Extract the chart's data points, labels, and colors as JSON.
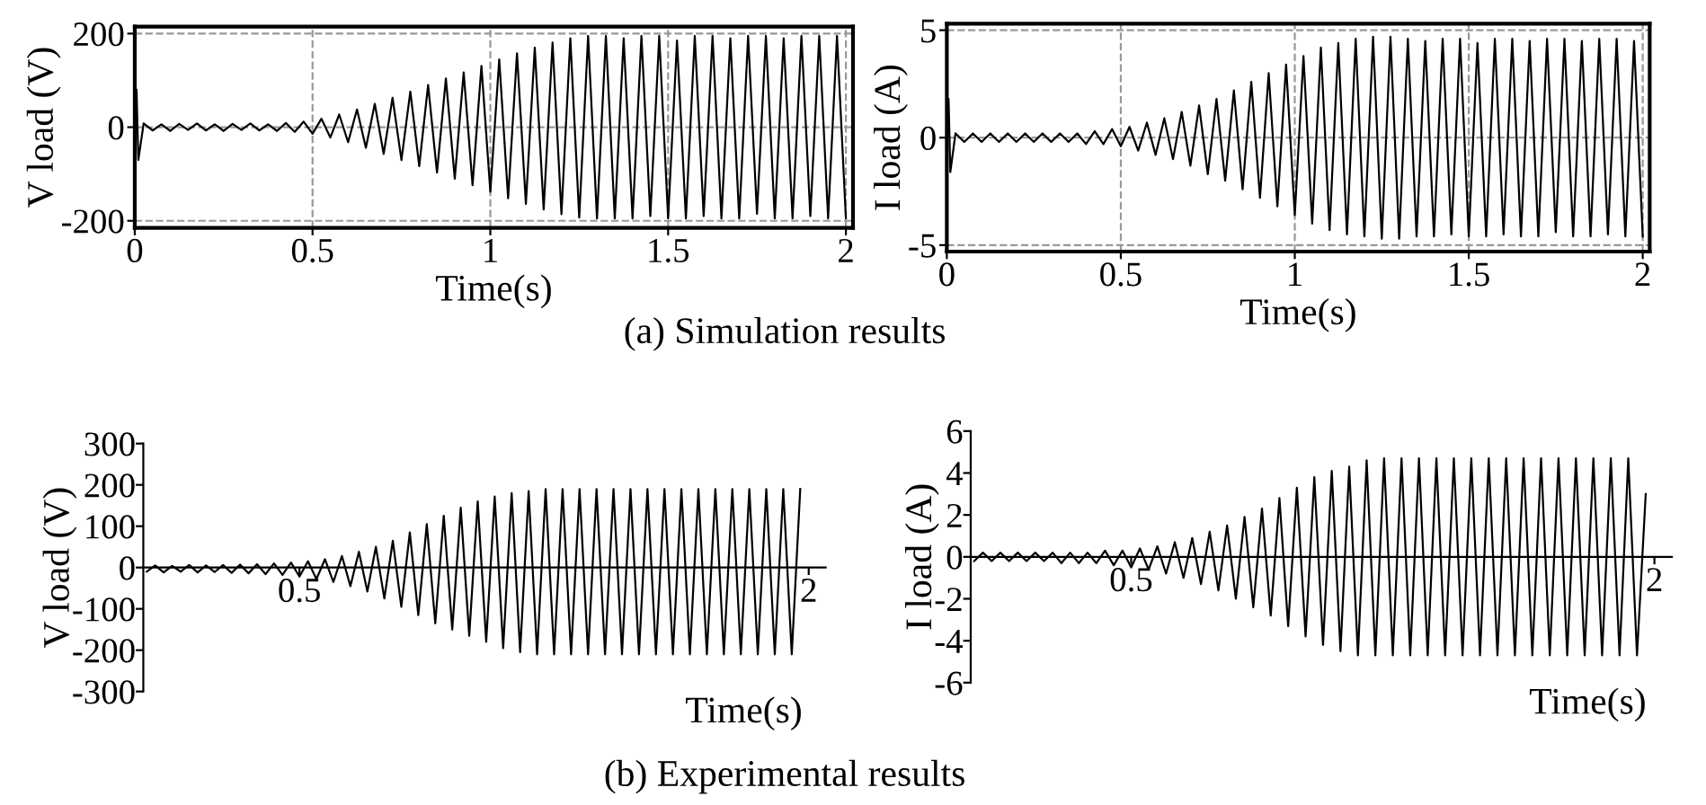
{
  "chart_data": [
    {
      "type": "line",
      "xlabel": "Time(s)",
      "ylabel": "V load (V)",
      "xlim": [
        0,
        2.02
      ],
      "ylim": [
        -215,
        215
      ],
      "xticks": [
        0,
        0.5,
        1,
        1.5,
        2
      ],
      "yticks": [
        -200,
        0,
        200
      ],
      "grid": true,
      "annotations": [
        "(a) Simulation results"
      ],
      "series": [
        {
          "color": "#000000",
          "x": [
            0,
            0.005,
            0.01,
            0.025,
            0.05,
            0.075,
            0.1,
            0.125,
            0.15,
            0.175,
            0.2,
            0.225,
            0.25,
            0.275,
            0.3,
            0.325,
            0.35,
            0.375,
            0.4,
            0.425,
            0.45,
            0.475,
            0.5,
            0.525,
            0.55,
            0.575,
            0.6,
            0.625,
            0.65,
            0.675,
            0.7,
            0.725,
            0.75,
            0.775,
            0.8,
            0.825,
            0.85,
            0.875,
            0.9,
            0.925,
            0.95,
            0.975,
            1.0,
            1.025,
            1.05,
            1.075,
            1.1,
            1.125,
            1.15,
            1.175,
            1.2,
            1.225,
            1.25,
            1.275,
            1.3,
            1.325,
            1.35,
            1.375,
            1.4,
            1.425,
            1.45,
            1.475,
            1.5,
            1.525,
            1.55,
            1.575,
            1.6,
            1.625,
            1.65,
            1.675,
            1.7,
            1.725,
            1.75,
            1.775,
            1.8,
            1.825,
            1.85,
            1.875,
            1.9,
            1.925,
            1.95,
            1.975,
            2.0
          ],
          "values": [
            0,
            80,
            -70,
            8,
            -7,
            6,
            -8,
            7,
            -6,
            8,
            -7,
            6,
            -8,
            7,
            -6,
            8,
            -7,
            6,
            -8,
            9,
            -10,
            12,
            -14,
            18,
            -22,
            27,
            -32,
            38,
            -44,
            50,
            -57,
            63,
            -70,
            76,
            -83,
            90,
            -97,
            104,
            -110,
            117,
            -124,
            131,
            -138,
            145,
            -152,
            158,
            -164,
            170,
            -176,
            181,
            -186,
            190,
            -193,
            195,
            -195,
            195,
            -195,
            190,
            -195,
            195,
            -190,
            195,
            -195,
            185,
            -195,
            195,
            -190,
            195,
            -195,
            190,
            -195,
            195,
            -185,
            195,
            -195,
            190,
            -195,
            195,
            -190,
            195,
            -195,
            195,
            -195
          ]
        }
      ]
    },
    {
      "type": "line",
      "xlabel": "Time(s)",
      "ylabel": "I load (A)",
      "xlim": [
        0,
        2.02
      ],
      "ylim": [
        -5.3,
        5.3
      ],
      "xticks": [
        0,
        0.5,
        1,
        1.5,
        2
      ],
      "yticks": [
        -5,
        0,
        5
      ],
      "grid": true,
      "series": [
        {
          "color": "#000000",
          "x": [
            0,
            0.005,
            0.01,
            0.025,
            0.05,
            0.075,
            0.1,
            0.125,
            0.15,
            0.175,
            0.2,
            0.225,
            0.25,
            0.275,
            0.3,
            0.325,
            0.35,
            0.375,
            0.4,
            0.425,
            0.45,
            0.475,
            0.5,
            0.525,
            0.55,
            0.575,
            0.6,
            0.625,
            0.65,
            0.675,
            0.7,
            0.725,
            0.75,
            0.775,
            0.8,
            0.825,
            0.85,
            0.875,
            0.9,
            0.925,
            0.95,
            0.975,
            1.0,
            1.025,
            1.05,
            1.075,
            1.1,
            1.125,
            1.15,
            1.175,
            1.2,
            1.225,
            1.25,
            1.275,
            1.3,
            1.325,
            1.35,
            1.375,
            1.4,
            1.425,
            1.45,
            1.475,
            1.5,
            1.525,
            1.55,
            1.575,
            1.6,
            1.625,
            1.65,
            1.675,
            1.7,
            1.725,
            1.75,
            1.775,
            1.8,
            1.825,
            1.85,
            1.875,
            1.9,
            1.925,
            1.95,
            1.975,
            2.0
          ],
          "values": [
            0,
            1.8,
            -1.6,
            0.2,
            -0.2,
            0.2,
            -0.2,
            0.2,
            -0.2,
            0.2,
            -0.2,
            0.2,
            -0.2,
            0.2,
            -0.2,
            0.2,
            -0.2,
            0.2,
            -0.3,
            0.3,
            -0.3,
            0.4,
            -0.4,
            0.5,
            -0.6,
            0.7,
            -0.8,
            0.9,
            -1.0,
            1.2,
            -1.3,
            1.5,
            -1.7,
            1.8,
            -2.0,
            2.2,
            -2.4,
            2.6,
            -2.8,
            3.0,
            -3.2,
            3.4,
            -3.6,
            3.8,
            -4.0,
            4.2,
            -4.3,
            4.4,
            -4.5,
            4.6,
            -4.6,
            4.7,
            -4.7,
            4.7,
            -4.7,
            4.6,
            -4.6,
            4.5,
            -4.6,
            4.6,
            -4.5,
            4.6,
            -4.6,
            4.4,
            -4.6,
            4.6,
            -4.5,
            4.6,
            -4.6,
            4.5,
            -4.6,
            4.6,
            -4.4,
            4.6,
            -4.6,
            4.5,
            -4.6,
            4.6,
            -4.5,
            4.6,
            -4.6,
            4.5,
            -4.6
          ]
        }
      ]
    },
    {
      "type": "line",
      "xlabel": "Time(s)",
      "ylabel": "V load (V)",
      "xlim": [
        0.04,
        2.05
      ],
      "ylim": [
        -300,
        300
      ],
      "xticks": [
        0.5,
        2
      ],
      "yticks": [
        -300,
        -200,
        -100,
        0,
        100,
        200,
        300
      ],
      "annotations": [
        "(b) Experimental results"
      ],
      "series": [
        {
          "color": "#000000",
          "x": [
            0.05,
            0.075,
            0.1,
            0.125,
            0.15,
            0.175,
            0.2,
            0.225,
            0.25,
            0.275,
            0.3,
            0.325,
            0.35,
            0.375,
            0.4,
            0.425,
            0.45,
            0.475,
            0.5,
            0.525,
            0.55,
            0.575,
            0.6,
            0.625,
            0.65,
            0.675,
            0.7,
            0.725,
            0.75,
            0.775,
            0.8,
            0.825,
            0.85,
            0.875,
            0.9,
            0.925,
            0.95,
            0.975,
            1.0,
            1.025,
            1.05,
            1.075,
            1.1,
            1.125,
            1.15,
            1.175,
            1.2,
            1.225,
            1.25,
            1.275,
            1.3,
            1.325,
            1.35,
            1.375,
            1.4,
            1.425,
            1.45,
            1.475,
            1.5,
            1.525,
            1.55,
            1.575,
            1.6,
            1.625,
            1.65,
            1.675,
            1.7,
            1.725,
            1.75,
            1.775,
            1.8,
            1.825,
            1.85,
            1.875,
            1.9,
            1.925,
            1.95,
            1.975
          ],
          "values": [
            -10,
            5,
            -12,
            4,
            -10,
            6,
            -12,
            5,
            -11,
            6,
            -13,
            7,
            -14,
            8,
            -16,
            10,
            -18,
            12,
            -22,
            15,
            -28,
            20,
            -35,
            28,
            -45,
            38,
            -58,
            50,
            -75,
            65,
            -95,
            85,
            -115,
            105,
            -135,
            125,
            -150,
            145,
            -165,
            160,
            -180,
            172,
            -195,
            180,
            -205,
            185,
            -210,
            190,
            -210,
            190,
            -210,
            190,
            -210,
            190,
            -210,
            190,
            -210,
            190,
            -210,
            190,
            -210,
            190,
            -210,
            190,
            -210,
            190,
            -210,
            190,
            -210,
            190,
            -210,
            190,
            -210,
            190,
            -210,
            190,
            -210,
            190
          ]
        }
      ]
    },
    {
      "type": "line",
      "xlabel": "Time(s)",
      "ylabel": "I load (A)",
      "xlim": [
        0.04,
        2.05
      ],
      "ylim": [
        -6,
        6
      ],
      "xticks": [
        0.5,
        2
      ],
      "yticks": [
        -6,
        -4,
        -2,
        0,
        2,
        4,
        6
      ],
      "series": [
        {
          "color": "#000000",
          "x": [
            0.05,
            0.075,
            0.1,
            0.125,
            0.15,
            0.175,
            0.2,
            0.225,
            0.25,
            0.275,
            0.3,
            0.325,
            0.35,
            0.375,
            0.4,
            0.425,
            0.45,
            0.475,
            0.5,
            0.525,
            0.55,
            0.575,
            0.6,
            0.625,
            0.65,
            0.675,
            0.7,
            0.725,
            0.75,
            0.775,
            0.8,
            0.825,
            0.85,
            0.875,
            0.9,
            0.925,
            0.95,
            0.975,
            1.0,
            1.025,
            1.05,
            1.075,
            1.1,
            1.125,
            1.15,
            1.175,
            1.2,
            1.225,
            1.25,
            1.275,
            1.3,
            1.325,
            1.35,
            1.375,
            1.4,
            1.425,
            1.45,
            1.475,
            1.5,
            1.525,
            1.55,
            1.575,
            1.6,
            1.625,
            1.65,
            1.675,
            1.7,
            1.725,
            1.75,
            1.775,
            1.8,
            1.825,
            1.85,
            1.875,
            1.9,
            1.925,
            1.95,
            1.975
          ],
          "values": [
            -0.2,
            0.2,
            -0.2,
            0.2,
            -0.2,
            0.2,
            -0.2,
            0.2,
            -0.2,
            0.2,
            -0.3,
            0.2,
            -0.3,
            0.2,
            -0.3,
            0.3,
            -0.4,
            0.3,
            -0.5,
            0.4,
            -0.6,
            0.5,
            -0.8,
            0.7,
            -1.0,
            0.9,
            -1.3,
            1.2,
            -1.6,
            1.5,
            -2.0,
            1.9,
            -2.4,
            2.3,
            -2.8,
            2.8,
            -3.3,
            3.3,
            -3.8,
            3.8,
            -4.2,
            4.1,
            -4.5,
            4.3,
            -4.7,
            4.6,
            -4.7,
            4.7,
            -4.7,
            4.7,
            -4.7,
            4.7,
            -4.7,
            4.7,
            -4.7,
            4.7,
            -4.7,
            4.7,
            -4.7,
            4.7,
            -4.7,
            4.7,
            -4.7,
            4.7,
            -4.7,
            4.7,
            -4.7,
            4.7,
            -4.7,
            4.7,
            -4.7,
            4.7,
            -4.7,
            4.7,
            -4.7,
            4.7,
            -4.7,
            3.0
          ]
        }
      ]
    }
  ]
}
